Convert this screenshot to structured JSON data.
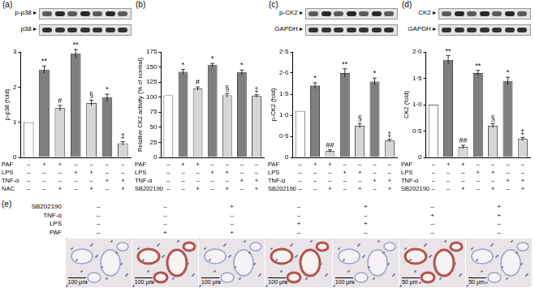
{
  "chart_data": [
    {
      "panel": "(a)",
      "type": "bar",
      "blot_labels": [
        "p-p38 ▸",
        "p38 ▸"
      ],
      "y_label": "p-p38 (fold)",
      "categories": [
        null,
        null,
        null,
        null,
        null,
        null,
        null
      ],
      "values": [
        1.0,
        2.5,
        1.4,
        2.95,
        1.55,
        1.7,
        0.4
      ],
      "errors": [
        0,
        0.1,
        0.08,
        0.12,
        0.08,
        0.1,
        0.05
      ],
      "annotations": [
        null,
        "**",
        "#",
        "**",
        "§",
        "*",
        "‡"
      ],
      "colors": [
        "#ffffff",
        "#7f7f7f",
        "#d6d6d6",
        "#7f7f7f",
        "#d6d6d6",
        "#7f7f7f",
        "#d6d6d6"
      ],
      "ylim": [
        0,
        3
      ],
      "yticks": [
        0,
        1,
        2,
        3
      ],
      "grid": false,
      "tick_labels": "y",
      "conditions": [
        {
          "name": "PAF",
          "signs": [
            "–",
            "+",
            "+",
            "–",
            "–",
            "–",
            "–"
          ]
        },
        {
          "name": "LPS",
          "signs": [
            "–",
            "–",
            "–",
            "+",
            "+",
            "–",
            "–"
          ]
        },
        {
          "name": "TNF-α",
          "signs": [
            "–",
            "–",
            "–",
            "–",
            "–",
            "+",
            "+"
          ]
        },
        {
          "name": "NAC",
          "signs": [
            "–",
            "–",
            "+",
            "–",
            "+",
            "–",
            "+"
          ]
        }
      ]
    },
    {
      "panel": "(b)",
      "type": "bar",
      "blot_labels": [],
      "y_label": "Relative CK2 activity (% of normal)",
      "categories": [
        null,
        null,
        null,
        null,
        null,
        null,
        null
      ],
      "values": [
        103,
        142,
        114,
        153,
        103,
        141,
        102
      ],
      "errors": [
        0,
        4,
        3,
        3,
        3,
        4,
        2
      ],
      "annotations": [
        null,
        "*",
        "#",
        "*",
        "§",
        "*",
        "‡"
      ],
      "colors": [
        "#ffffff",
        "#7f7f7f",
        "#d6d6d6",
        "#7f7f7f",
        "#d6d6d6",
        "#7f7f7f",
        "#d6d6d6"
      ],
      "ylim": [
        0,
        175
      ],
      "yticks": [
        0,
        25,
        50,
        75,
        100,
        125,
        150,
        175
      ],
      "grid": false,
      "tick_labels": "y",
      "conditions": [
        {
          "name": "PAF",
          "signs": [
            "–",
            "+",
            "+",
            "–",
            "–",
            "–",
            "–"
          ]
        },
        {
          "name": "LPS",
          "signs": [
            "–",
            "–",
            "–",
            "+",
            "+",
            "–",
            "–"
          ]
        },
        {
          "name": "TNF-α",
          "signs": [
            "–",
            "–",
            "–",
            "–",
            "–",
            "+",
            "+"
          ]
        },
        {
          "name": "SB202190",
          "signs": [
            "–",
            "–",
            "+",
            "–",
            "+",
            "–",
            "+"
          ]
        }
      ]
    },
    {
      "panel": "(c)",
      "type": "bar",
      "blot_labels": [
        "p-CK2 ▸",
        "GAPDH ▸"
      ],
      "y_label": "p-CK2 (fold)",
      "categories": [
        null,
        null,
        null,
        null,
        null,
        null,
        null
      ],
      "values": [
        1.1,
        1.7,
        0.15,
        2.0,
        0.75,
        1.8,
        0.4
      ],
      "errors": [
        0,
        0.07,
        0.03,
        0.1,
        0.05,
        0.08,
        0.03
      ],
      "annotations": [
        null,
        "*",
        "##",
        "**",
        "§",
        "*",
        "‡"
      ],
      "colors": [
        "#ffffff",
        "#7f7f7f",
        "#d6d6d6",
        "#7f7f7f",
        "#d6d6d6",
        "#7f7f7f",
        "#d6d6d6"
      ],
      "ylim": [
        0,
        2.5
      ],
      "yticks": [
        0,
        {
          "value": 0.5,
          "label": "0·5"
        },
        {
          "value": 1.0,
          "label": "1·0"
        },
        {
          "value": 1.5,
          "label": "1·5"
        },
        {
          "value": 2.0,
          "label": "2·0"
        },
        {
          "value": 2.5,
          "label": "2·5"
        }
      ],
      "grid": false,
      "tick_labels": "y",
      "conditions": [
        {
          "name": "PAF",
          "signs": [
            "–",
            "+",
            "+",
            "–",
            "–",
            "–",
            "–"
          ]
        },
        {
          "name": "LPS",
          "signs": [
            "–",
            "–",
            "–",
            "+",
            "+",
            "–",
            "–"
          ]
        },
        {
          "name": "TNF-α",
          "signs": [
            "–",
            "–",
            "–",
            "–",
            "–",
            "+",
            "+"
          ]
        },
        {
          "name": "SB202190",
          "signs": [
            "–",
            "–",
            "+",
            "–",
            "+",
            "–",
            "+"
          ]
        }
      ]
    },
    {
      "panel": "(d)",
      "type": "bar",
      "blot_labels": [
        "CK2 ▸",
        "GAPDH ▸"
      ],
      "y_label": "CK2 (fold)",
      "categories": [
        null,
        null,
        null,
        null,
        null,
        null,
        null
      ],
      "values": [
        1.0,
        1.85,
        0.2,
        1.6,
        0.6,
        1.45,
        0.35
      ],
      "errors": [
        0,
        0.08,
        0.03,
        0.05,
        0.04,
        0.07,
        0.03
      ],
      "annotations": [
        null,
        "**",
        "##",
        "**",
        "§",
        "*",
        "‡"
      ],
      "colors": [
        "#ffffff",
        "#7f7f7f",
        "#d6d6d6",
        "#7f7f7f",
        "#d6d6d6",
        "#7f7f7f",
        "#d6d6d6"
      ],
      "ylim": [
        0,
        2.0
      ],
      "yticks": [
        0,
        {
          "value": 0.5,
          "label": "0·5"
        },
        {
          "value": 1.0,
          "label": "1·0"
        },
        {
          "value": 1.5,
          "label": "1·5"
        },
        {
          "value": 2.0,
          "label": "2·0"
        }
      ],
      "grid": false,
      "tick_labels": "y",
      "conditions": [
        {
          "name": "PAF",
          "signs": [
            "–",
            "+",
            "+",
            "–",
            "–",
            "–",
            "–"
          ]
        },
        {
          "name": "LPS",
          "signs": [
            "–",
            "–",
            "–",
            "+",
            "+",
            "–",
            "–"
          ]
        },
        {
          "name": "TNF-α",
          "signs": [
            "–",
            "–",
            "–",
            "–",
            "–",
            "+",
            "+"
          ]
        },
        {
          "name": "SB202190",
          "signs": [
            "–",
            "–",
            "+",
            "–",
            "+",
            "–",
            "+"
          ]
        }
      ]
    }
  ],
  "panel_e": {
    "label": "(e)",
    "rows": [
      {
        "name": "SB202190",
        "signs": [
          "–",
          "–",
          "+",
          "–",
          "+",
          "–",
          "+"
        ]
      },
      {
        "name": "TNF-α",
        "signs": [
          "–",
          "–",
          "–",
          "–",
          "–",
          "+",
          "+"
        ]
      },
      {
        "name": "LPS",
        "signs": [
          "–",
          "–",
          "–",
          "+",
          "+",
          "–",
          "–"
        ]
      },
      {
        "name": "PAF",
        "signs": [
          "–",
          "+",
          "+",
          "–",
          "–",
          "–",
          "–"
        ]
      }
    ],
    "scale_bars": [
      "100 μm",
      "100 μm",
      "100 μm",
      "100 μm",
      "100 μm",
      "50 μm",
      "50 μm"
    ]
  }
}
